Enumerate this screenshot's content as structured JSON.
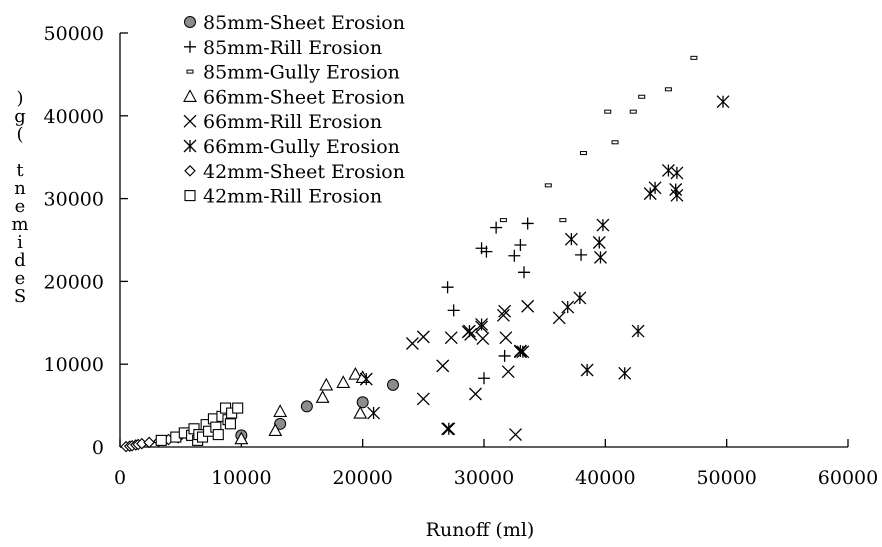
{
  "chart_data": {
    "type": "scatter",
    "title": "",
    "xlabel": "Runoff (ml)",
    "ylabel": "Sediment (g)",
    "xlim": [
      0,
      60000
    ],
    "ylim": [
      0,
      50000
    ],
    "x_ticks": [
      "0",
      "10000",
      "20000",
      "30000",
      "40000",
      "50000",
      "60000"
    ],
    "y_ticks": [
      "0",
      "10000",
      "20000",
      "30000",
      "40000",
      "50000"
    ],
    "grid": false,
    "legend_position": "top-left",
    "series": [
      {
        "name": "85mm-Sheet Erosion",
        "marker": "filled-circle",
        "points": [
          [
            10000,
            1400
          ],
          [
            13200,
            2800
          ],
          [
            15400,
            4900
          ],
          [
            20000,
            5400
          ],
          [
            22500,
            7500
          ]
        ]
      },
      {
        "name": "85mm-Rill Erosion",
        "marker": "plus",
        "points": [
          [
            27000,
            19300
          ],
          [
            27500,
            16500
          ],
          [
            29800,
            24000
          ],
          [
            30200,
            23600
          ],
          [
            30000,
            8300
          ],
          [
            31000,
            26500
          ],
          [
            31700,
            11000
          ],
          [
            32500,
            23100
          ],
          [
            33000,
            24400
          ],
          [
            33300,
            21100
          ],
          [
            33600,
            27000
          ],
          [
            38000,
            23200
          ]
        ]
      },
      {
        "name": "85mm-Gully Erosion",
        "marker": "dash",
        "points": [
          [
            31600,
            27400
          ],
          [
            35300,
            31600
          ],
          [
            36500,
            27400
          ],
          [
            38200,
            35500
          ],
          [
            40200,
            40500
          ],
          [
            40800,
            36800
          ],
          [
            42300,
            40500
          ],
          [
            43000,
            42300
          ],
          [
            45200,
            43200
          ],
          [
            47300,
            47000
          ]
        ]
      },
      {
        "name": "66mm-Sheet Erosion",
        "marker": "triangle",
        "points": [
          [
            10000,
            1000
          ],
          [
            12800,
            2000
          ],
          [
            13200,
            4300
          ],
          [
            16700,
            6000
          ],
          [
            17000,
            7500
          ],
          [
            18400,
            7800
          ],
          [
            19400,
            8800
          ],
          [
            19800,
            4100
          ],
          [
            20000,
            8400
          ]
        ]
      },
      {
        "name": "66mm-Rill Erosion",
        "marker": "x",
        "points": [
          [
            24100,
            12500
          ],
          [
            25000,
            13300
          ],
          [
            25000,
            5800
          ],
          [
            26600,
            9800
          ],
          [
            27000,
            2200
          ],
          [
            27300,
            13200
          ],
          [
            28700,
            13900
          ],
          [
            28900,
            13600
          ],
          [
            29300,
            6400
          ],
          [
            29800,
            14500
          ],
          [
            29900,
            13100
          ],
          [
            31600,
            15900
          ],
          [
            31700,
            16400
          ],
          [
            31800,
            13200
          ],
          [
            32000,
            9100
          ],
          [
            32600,
            1500
          ],
          [
            33000,
            11500
          ],
          [
            33600,
            17000
          ],
          [
            36200,
            15600
          ]
        ]
      },
      {
        "name": "66mm-Gully Erosion",
        "marker": "asterisk",
        "points": [
          [
            20300,
            8200
          ],
          [
            20900,
            4100
          ],
          [
            27100,
            2200
          ],
          [
            28800,
            14000
          ],
          [
            29800,
            14800
          ],
          [
            33000,
            11600
          ],
          [
            33200,
            11500
          ],
          [
            36900,
            16900
          ],
          [
            37200,
            25100
          ],
          [
            37900,
            18000
          ],
          [
            38500,
            9300
          ],
          [
            39500,
            24700
          ],
          [
            39600,
            22900
          ],
          [
            39800,
            26800
          ],
          [
            41600,
            8900
          ],
          [
            42700,
            14000
          ],
          [
            43700,
            30600
          ],
          [
            44100,
            31300
          ],
          [
            45200,
            33400
          ],
          [
            45900,
            33100
          ],
          [
            45800,
            31100
          ],
          [
            45900,
            30400
          ],
          [
            49700,
            41700
          ]
        ]
      },
      {
        "name": "42mm-Sheet Erosion",
        "marker": "diamond",
        "points": [
          [
            500,
            50
          ],
          [
            800,
            100
          ],
          [
            1000,
            150
          ],
          [
            1300,
            250
          ],
          [
            1500,
            300
          ],
          [
            1800,
            400
          ],
          [
            2400,
            550
          ],
          [
            3200,
            700
          ],
          [
            4000,
            900
          ],
          [
            4800,
            1100
          ],
          [
            5600,
            1400
          ]
        ]
      },
      {
        "name": "42mm-Rill Erosion",
        "marker": "square",
        "points": [
          [
            3400,
            800
          ],
          [
            4600,
            1200
          ],
          [
            5300,
            1700
          ],
          [
            5900,
            1400
          ],
          [
            6100,
            2200
          ],
          [
            6400,
            800
          ],
          [
            6500,
            1500
          ],
          [
            6800,
            1200
          ],
          [
            7100,
            2700
          ],
          [
            7300,
            1900
          ],
          [
            7700,
            3400
          ],
          [
            7900,
            2400
          ],
          [
            8100,
            1500
          ],
          [
            8400,
            3700
          ],
          [
            8700,
            4700
          ],
          [
            8900,
            3300
          ],
          [
            9100,
            2800
          ],
          [
            9200,
            4100
          ],
          [
            9700,
            4700
          ]
        ]
      }
    ]
  }
}
